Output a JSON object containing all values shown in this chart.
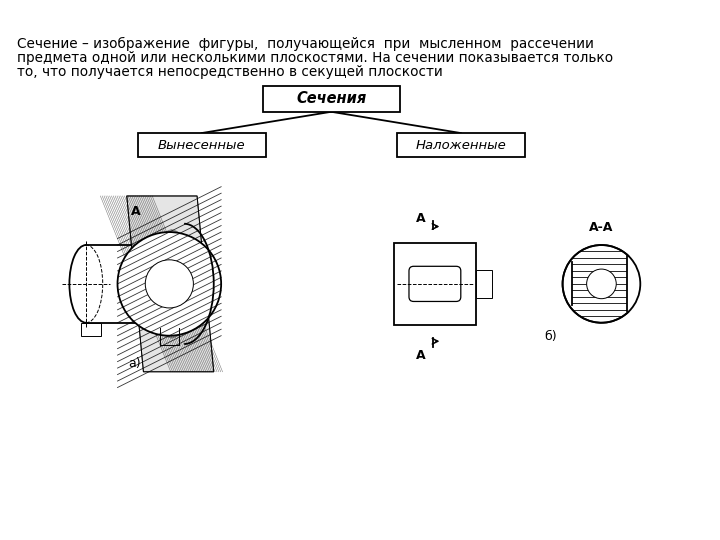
{
  "bg_color": "#ffffff",
  "text_color": "#000000",
  "main_text_line1": "Сечение – изображение  фигуры,  получающейся  при  мысленном  рассечении",
  "main_text_line2": "предмета одной или несколькими плоскостями. На сечении показывается только",
  "main_text_line3": "то, что получается непосредственно в секущей плоскости",
  "box_top": "Сечения",
  "box_left": "Вынесенные",
  "box_right": "Наложенные",
  "label_a": "а)",
  "label_b": "б)",
  "label_A": "A",
  "label_AA": "A-A",
  "hatch_color": "#555555",
  "plane_color": "#d8d8d8",
  "lw_main": 1.3,
  "lw_thin": 0.7
}
